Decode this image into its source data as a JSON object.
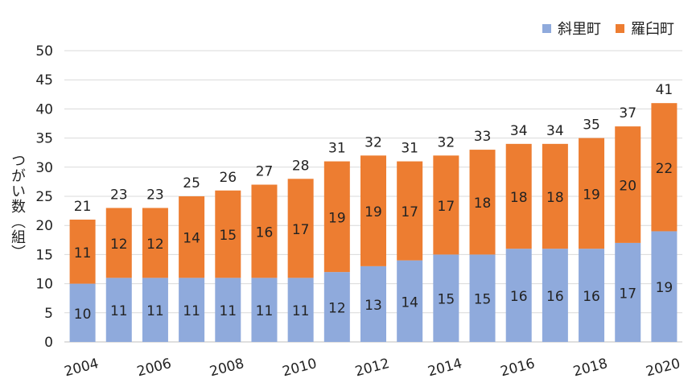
{
  "chart_data": {
    "type": "bar",
    "stacked": true,
    "x": [
      2004,
      2005,
      2006,
      2007,
      2008,
      2009,
      2010,
      2011,
      2012,
      2013,
      2014,
      2015,
      2016,
      2017,
      2018,
      2019,
      2020
    ],
    "tick_labels_x": [
      "2004",
      "2006",
      "2008",
      "2010",
      "2012",
      "2014",
      "2016",
      "2018",
      "2020"
    ],
    "series": [
      {
        "name": "斜里町",
        "color": "#8faadc",
        "values": [
          10,
          11,
          11,
          11,
          11,
          11,
          11,
          12,
          13,
          14,
          15,
          15,
          16,
          16,
          16,
          17,
          19
        ]
      },
      {
        "name": "羅臼町",
        "color": "#ed7d31",
        "values": [
          11,
          12,
          12,
          14,
          15,
          16,
          17,
          19,
          19,
          17,
          17,
          18,
          18,
          18,
          19,
          20,
          22
        ]
      }
    ],
    "totals": [
      21,
      23,
      23,
      25,
      26,
      27,
      28,
      31,
      32,
      31,
      32,
      33,
      34,
      34,
      35,
      37,
      41
    ],
    "ylabel": "つがい数（組）",
    "ylim": [
      0,
      50
    ],
    "yticks": [
      0,
      5,
      10,
      15,
      20,
      25,
      30,
      35,
      40,
      45,
      50
    ],
    "grid": true,
    "legend_position": "top-right"
  }
}
